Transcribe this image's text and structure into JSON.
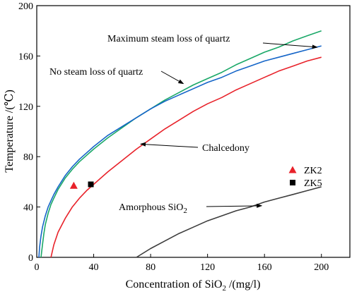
{
  "chart_data": {
    "type": "line",
    "xlabel_main": "Concentration of SiO",
    "xlabel_sub": "2",
    "xlabel_tail": " /(mg/l)",
    "ylabel": "Temperature /(℃)",
    "xlim": [
      0,
      220
    ],
    "ylim": [
      0,
      200
    ],
    "xticks": [
      0,
      40,
      80,
      120,
      160,
      200
    ],
    "yticks": [
      0,
      40,
      80,
      120,
      160,
      200
    ],
    "grid": false,
    "series": [
      {
        "name": "Maximum steam loss of quartz",
        "color": "#1aa868",
        "x": [
          3,
          4,
          5,
          6,
          8,
          10,
          12,
          15,
          20,
          25,
          30,
          40,
          50,
          60,
          70,
          80,
          90,
          100,
          110,
          120,
          130,
          140,
          150,
          160,
          170,
          180,
          190,
          200
        ],
        "y": [
          0,
          10,
          19,
          26,
          35,
          42,
          47,
          54,
          63,
          70,
          76,
          86,
          95,
          103,
          111,
          118,
          125,
          131,
          137,
          142,
          147,
          153,
          158,
          163,
          167,
          172,
          176,
          180
        ]
      },
      {
        "name": "No steam loss of quartz",
        "color": "#1565c8",
        "x": [
          1.5,
          2,
          3,
          4,
          6,
          8,
          10,
          12,
          15,
          20,
          25,
          30,
          40,
          50,
          60,
          70,
          80,
          90,
          100,
          110,
          120,
          130,
          140,
          150,
          160,
          170,
          180,
          190,
          200
        ],
        "y": [
          0,
          8,
          17,
          24,
          33,
          40,
          45,
          50,
          56,
          65,
          72,
          78,
          88,
          97,
          104,
          111,
          118,
          124,
          129,
          134,
          139,
          143,
          148,
          152,
          156,
          159,
          162,
          165,
          168
        ]
      },
      {
        "name": "Chalcedony",
        "color": "#e8222a",
        "x": [
          10,
          12,
          15,
          20,
          25,
          30,
          35,
          40,
          50,
          60,
          70,
          80,
          90,
          100,
          110,
          120,
          130,
          140,
          150,
          160,
          170,
          180,
          190,
          200
        ],
        "y": [
          0,
          10,
          20,
          31,
          40,
          47,
          53,
          58,
          68,
          77,
          86,
          94,
          102,
          109,
          116,
          122,
          127,
          133,
          138,
          143,
          148,
          152,
          156,
          159
        ]
      },
      {
        "name": "Amorphous SiO2",
        "color": "#3d3d3d",
        "x": [
          70,
          80,
          90,
          100,
          110,
          120,
          130,
          140,
          150,
          160,
          170,
          180,
          190,
          200
        ],
        "y": [
          0,
          7,
          13,
          19,
          24,
          29,
          33,
          37,
          40,
          44,
          47,
          50,
          53,
          56
        ]
      }
    ],
    "points": [
      {
        "name": "ZK2",
        "marker": "triangle",
        "color": "#e8222a",
        "x": 26,
        "y": 57
      },
      {
        "name": "ZK5",
        "marker": "square",
        "color": "#000000",
        "x": 38,
        "y": 58
      }
    ],
    "annotations": [
      {
        "text": "Maximum steam loss of quartz",
        "target": [
          197,
          167
        ]
      },
      {
        "text": "No steam loss of quartz",
        "target": [
          103,
          138
        ]
      },
      {
        "text": "Chalcedony",
        "target": [
          73,
          90
        ]
      },
      {
        "text": "Amorphous SiO",
        "sub": "2",
        "target": [
          158,
          41
        ]
      }
    ],
    "legend": {
      "placement": "right",
      "entries": [
        {
          "label": "ZK2",
          "marker": "triangle",
          "color": "#e8222a"
        },
        {
          "label": "ZK5",
          "marker": "square",
          "color": "#000000"
        }
      ]
    }
  }
}
